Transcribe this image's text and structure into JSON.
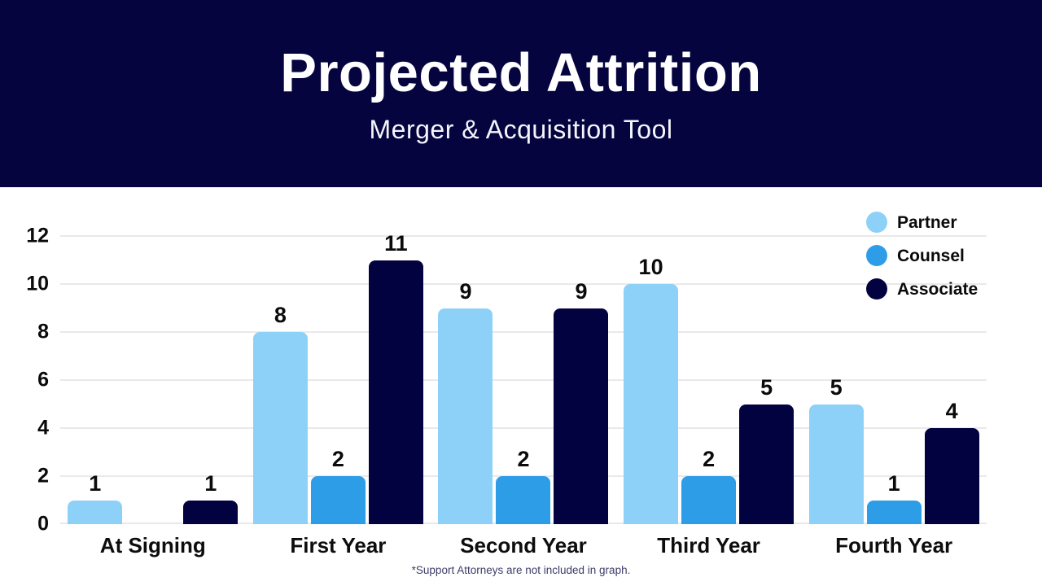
{
  "header": {
    "title": "Projected Attrition",
    "subtitle": "Merger & Acquisition Tool"
  },
  "colors": {
    "header_bg": "#05043F",
    "partner": "#8DD1F8",
    "counsel": "#2E9DE8",
    "associate": "#030240",
    "gridline": "#E9E9E9",
    "axis_text": "#0A0A0A",
    "footnote_text": "#3D3D6B"
  },
  "chart_data": {
    "type": "bar",
    "categories": [
      "At Signing",
      "First Year",
      "Second Year",
      "Third Year",
      "Fourth Year"
    ],
    "series": [
      {
        "name": "Partner",
        "color": "#8DD1F8",
        "values": [
          1,
          8,
          9,
          10,
          5
        ]
      },
      {
        "name": "Counsel",
        "color": "#2E9DE8",
        "values": [
          0,
          2,
          2,
          2,
          1
        ]
      },
      {
        "name": "Associate",
        "color": "#030240",
        "values": [
          1,
          11,
          9,
          5,
          4
        ]
      }
    ],
    "ylim": [
      0,
      12
    ],
    "yticks": [
      0,
      2,
      4,
      6,
      8,
      10,
      12
    ],
    "grid": true,
    "value_labels": true,
    "legend_position": "top-right",
    "footnote": "*Support Attorneys are not included in graph."
  }
}
